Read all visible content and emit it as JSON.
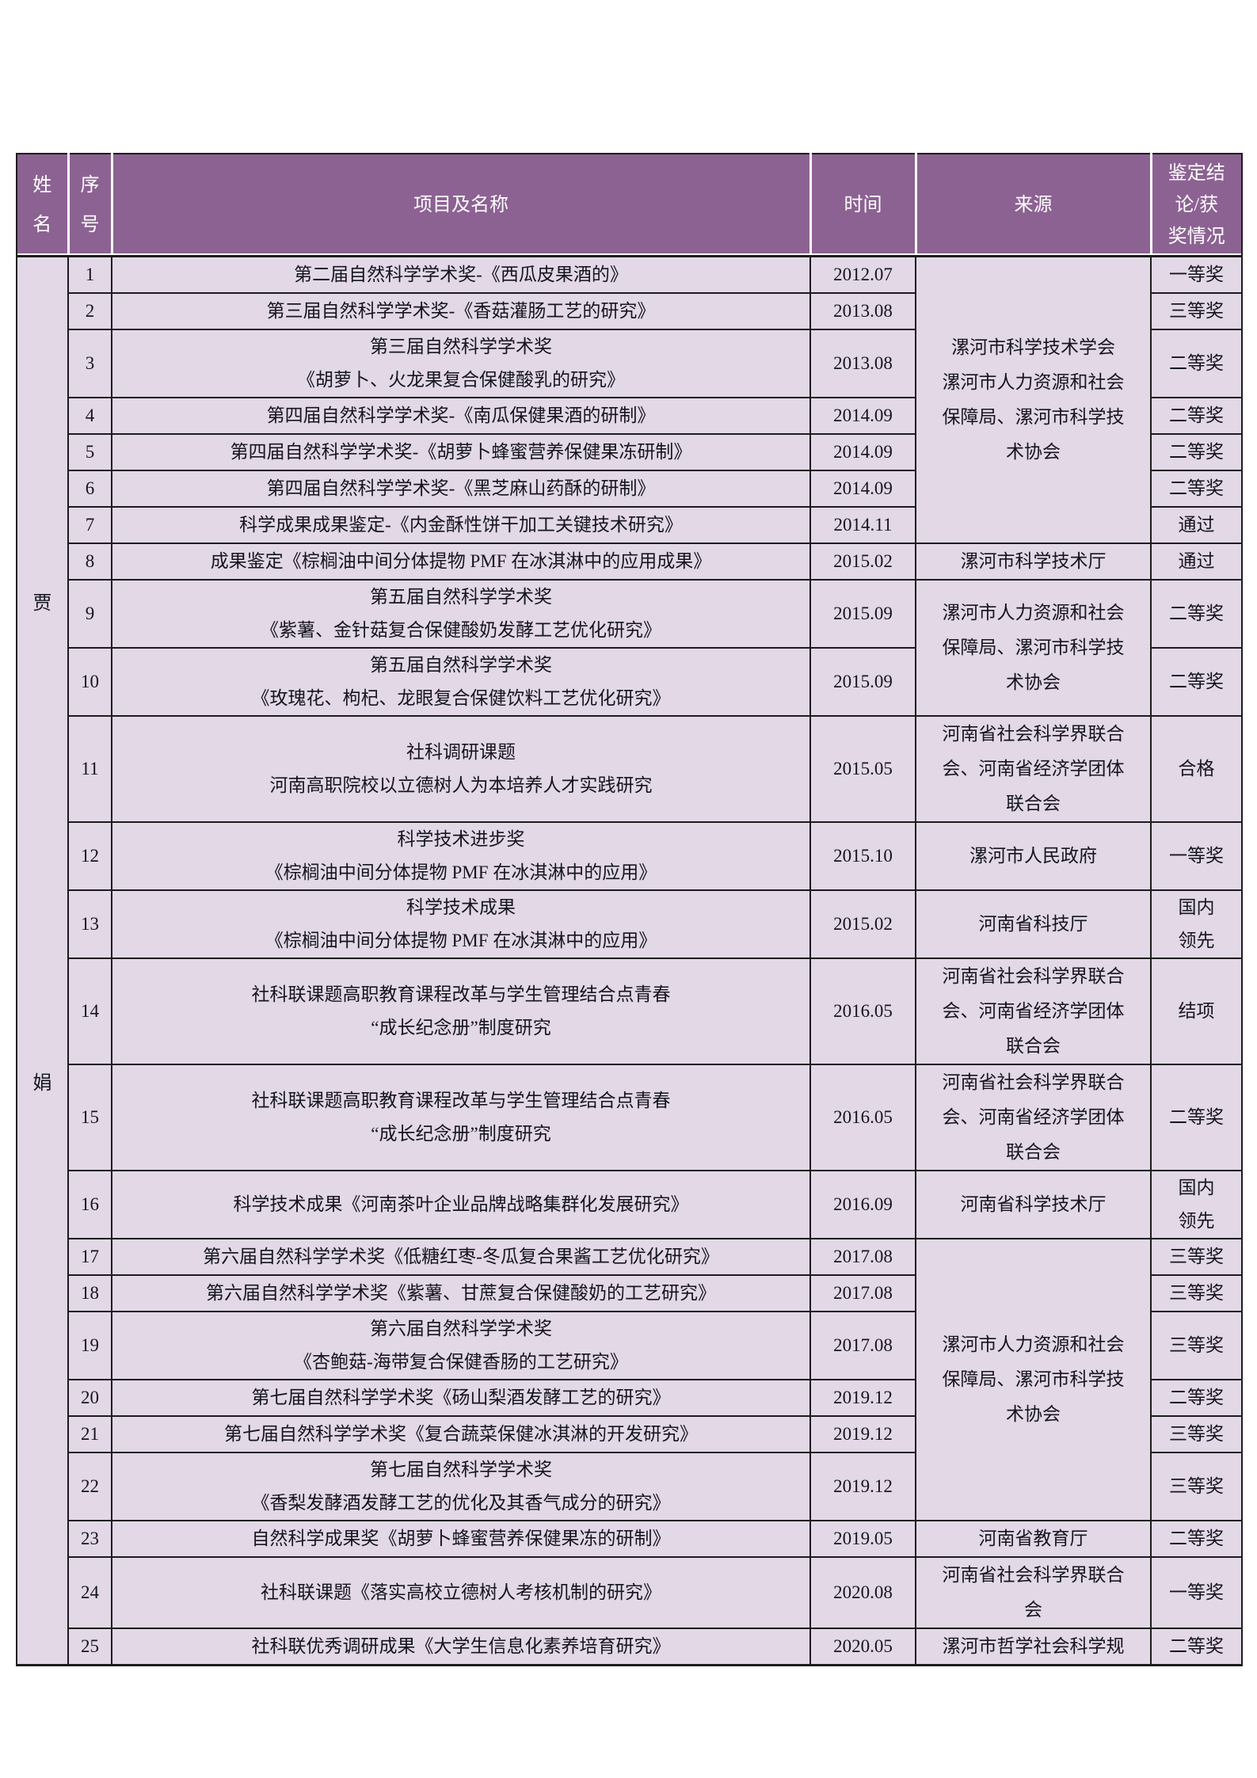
{
  "table": {
    "colors": {
      "header_bg": "#8c6292",
      "body_bg": "#e2d8e6",
      "border": "#1c1c1c",
      "header_text": "#ffffff",
      "body_text": "#15151f"
    },
    "headers": {
      "name": [
        "姓",
        "名"
      ],
      "no": [
        "序",
        "号"
      ],
      "project": [
        "项目及名称"
      ],
      "time": [
        "时间"
      ],
      "source": [
        "来源"
      ],
      "result": [
        "鉴定结",
        "论/获",
        "奖情况"
      ]
    },
    "name_cell": {
      "chars": [
        "贾",
        "娟"
      ]
    },
    "rows": [
      {
        "no": "1",
        "project": [
          "第二届自然科学学术奖-《西瓜皮果酒的》"
        ],
        "time": "2012.07",
        "source": {
          "rowspan": 7,
          "lines": [
            "漯河市科学技术学会",
            "漯河市人力资源和社会",
            "保障局、漯河市科学技",
            "术协会"
          ]
        },
        "award": [
          "一等奖"
        ]
      },
      {
        "no": "2",
        "project": [
          "第三届自然科学学术奖-《香菇灌肠工艺的研究》"
        ],
        "time": "2013.08",
        "award": [
          "三等奖"
        ]
      },
      {
        "no": "3",
        "project": [
          "第三届自然科学学术奖",
          "《胡萝卜、火龙果复合保健酸乳的研究》"
        ],
        "time": "2013.08",
        "award": [
          "二等奖"
        ]
      },
      {
        "no": "4",
        "project": [
          "第四届自然科学学术奖-《南瓜保健果酒的研制》"
        ],
        "time": "2014.09",
        "award": [
          "二等奖"
        ]
      },
      {
        "no": "5",
        "project": [
          "第四届自然科学学术奖-《胡萝卜蜂蜜营养保健果冻研制》"
        ],
        "time": "2014.09",
        "award": [
          "二等奖"
        ]
      },
      {
        "no": "6",
        "project": [
          "第四届自然科学学术奖-《黑芝麻山药酥的研制》"
        ],
        "time": "2014.09",
        "award": [
          "二等奖"
        ]
      },
      {
        "no": "7",
        "project": [
          "科学成果成果鉴定-《内金酥性饼干加工关键技术研究》"
        ],
        "time": "2014.11",
        "award": [
          "通过"
        ]
      },
      {
        "no": "8",
        "project": [
          "成果鉴定《棕榈油中间分体提物 PMF 在冰淇淋中的应用成果》"
        ],
        "time": "2015.02",
        "source": {
          "rowspan": 1,
          "lines": [
            "漯河市科学技术厅"
          ]
        },
        "award": [
          "通过"
        ]
      },
      {
        "no": "9",
        "project": [
          "第五届自然科学学术奖",
          "《紫薯、金针菇复合保健酸奶发酵工艺优化研究》"
        ],
        "time": "2015.09",
        "source": {
          "rowspan": 2,
          "lines": [
            "漯河市人力资源和社会",
            "保障局、漯河市科学技",
            "术协会"
          ]
        },
        "award": [
          "二等奖"
        ]
      },
      {
        "no": "10",
        "project": [
          "第五届自然科学学术奖",
          "《玫瑰花、枸杞、龙眼复合保健饮料工艺优化研究》"
        ],
        "time": "2015.09",
        "award": [
          "二等奖"
        ]
      },
      {
        "no": "11",
        "project": [
          "社科调研课题",
          "河南高职院校以立德树人为本培养人才实践研究"
        ],
        "time": "2015.05",
        "source": {
          "rowspan": 1,
          "lines": [
            "河南省社会科学界联合",
            "会、河南省经济学团体",
            "联合会"
          ]
        },
        "award": [
          "合格"
        ]
      },
      {
        "no": "12",
        "project": [
          "科学技术进步奖",
          "《棕榈油中间分体提物 PMF 在冰淇淋中的应用》"
        ],
        "time": "2015.10",
        "source": {
          "rowspan": 1,
          "lines": [
            "漯河市人民政府"
          ]
        },
        "award": [
          "一等奖"
        ]
      },
      {
        "no": "13",
        "project": [
          "科学技术成果",
          "《棕榈油中间分体提物 PMF 在冰淇淋中的应用》"
        ],
        "time": "2015.02",
        "source": {
          "rowspan": 1,
          "lines": [
            "河南省科技厅"
          ]
        },
        "award": [
          "国内",
          "领先"
        ]
      },
      {
        "no": "14",
        "project": [
          "社科联课题高职教育课程改革与学生管理结合点青春",
          "“成长纪念册”制度研究"
        ],
        "time": "2016.05",
        "source": {
          "rowspan": 1,
          "lines": [
            "河南省社会科学界联合",
            "会、河南省经济学团体",
            "联合会"
          ]
        },
        "award": [
          "结项"
        ]
      },
      {
        "no": "15",
        "project": [
          "社科联课题高职教育课程改革与学生管理结合点青春",
          "“成长纪念册”制度研究"
        ],
        "time": "2016.05",
        "source": {
          "rowspan": 1,
          "lines": [
            "河南省社会科学界联合",
            "会、河南省经济学团体",
            "联合会"
          ]
        },
        "award": [
          "二等奖"
        ]
      },
      {
        "no": "16",
        "project": [
          "科学技术成果《河南茶叶企业品牌战略集群化发展研究》"
        ],
        "time": "2016.09",
        "source": {
          "rowspan": 1,
          "lines": [
            "河南省科学技术厅"
          ]
        },
        "award": [
          "国内",
          "领先"
        ]
      },
      {
        "no": "17",
        "project": [
          "第六届自然科学学术奖《低糖红枣-冬瓜复合果酱工艺优化研究》"
        ],
        "time": "2017.08",
        "source": {
          "rowspan": 6,
          "lines": [
            "漯河市人力资源和社会",
            "保障局、漯河市科学技",
            "术协会"
          ]
        },
        "award": [
          "三等奖"
        ]
      },
      {
        "no": "18",
        "project": [
          "第六届自然科学学术奖《紫薯、甘蔗复合保健酸奶的工艺研究》"
        ],
        "time": "2017.08",
        "award": [
          "三等奖"
        ]
      },
      {
        "no": "19",
        "project": [
          "第六届自然科学学术奖",
          "《杏鲍菇-海带复合保健香肠的工艺研究》"
        ],
        "time": "2017.08",
        "award": [
          "三等奖"
        ]
      },
      {
        "no": "20",
        "project": [
          "第七届自然科学学术奖《砀山梨酒发酵工艺的研究》"
        ],
        "time": "2019.12",
        "award": [
          "二等奖"
        ]
      },
      {
        "no": "21",
        "project": [
          "第七届自然科学学术奖《复合蔬菜保健冰淇淋的开发研究》"
        ],
        "time": "2019.12",
        "award": [
          "三等奖"
        ]
      },
      {
        "no": "22",
        "project": [
          "第七届自然科学学术奖",
          "《香梨发酵酒发酵工艺的优化及其香气成分的研究》"
        ],
        "time": "2019.12",
        "award": [
          "三等奖"
        ]
      },
      {
        "no": "23",
        "project": [
          "自然科学成果奖《胡萝卜蜂蜜营养保健果冻的研制》"
        ],
        "time": "2019.05",
        "source": {
          "rowspan": 1,
          "lines": [
            "河南省教育厅"
          ]
        },
        "award": [
          "二等奖"
        ]
      },
      {
        "no": "24",
        "project": [
          "社科联课题《落实高校立德树人考核机制的研究》"
        ],
        "time": "2020.08",
        "source": {
          "rowspan": 1,
          "lines": [
            "河南省社会科学界联合",
            "会"
          ]
        },
        "award": [
          "一等奖"
        ]
      },
      {
        "no": "25",
        "project": [
          "社科联优秀调研成果《大学生信息化素养培育研究》"
        ],
        "time": "2020.05",
        "source": {
          "rowspan": 1,
          "lines": [
            "漯河市哲学社会科学规"
          ]
        },
        "award": [
          "二等奖"
        ]
      }
    ]
  }
}
